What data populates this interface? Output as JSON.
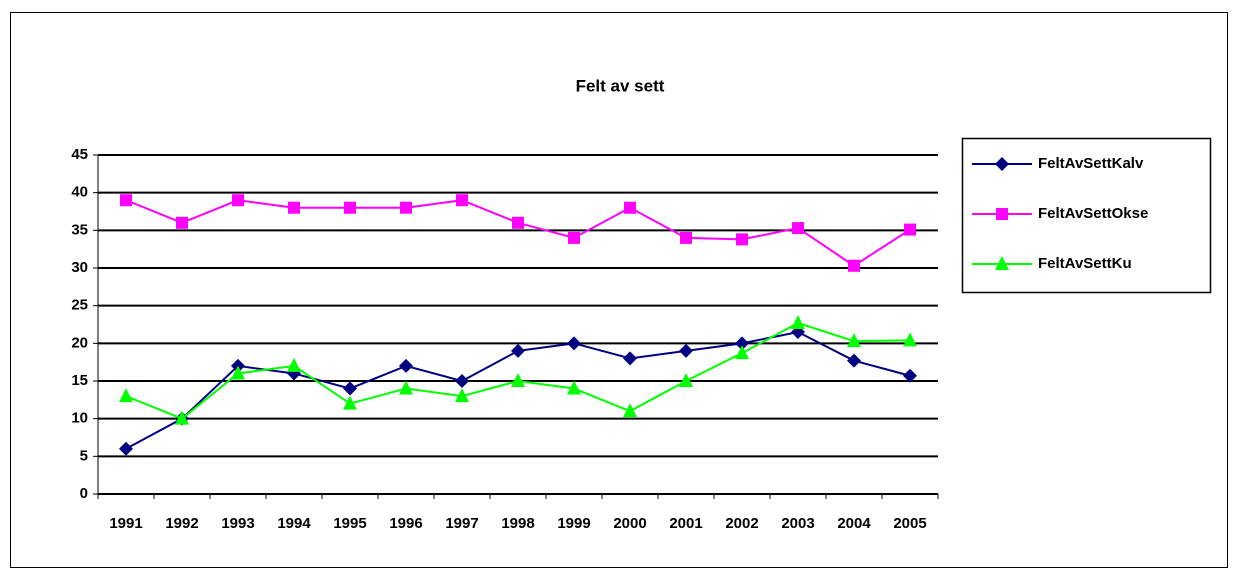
{
  "chart_data": {
    "type": "line",
    "title": "Felt av sett",
    "categories": [
      "1991",
      "1992",
      "1993",
      "1994",
      "1995",
      "1996",
      "1997",
      "1998",
      "1999",
      "2000",
      "2001",
      "2002",
      "2003",
      "2004",
      "2005"
    ],
    "series": [
      {
        "name": "FeltAvSettKalv",
        "color": "#000080",
        "marker": "diamond",
        "values": [
          6,
          10,
          17,
          16,
          14,
          17,
          15,
          19,
          20,
          18,
          19,
          20,
          21.5,
          17.7,
          15.7
        ]
      },
      {
        "name": "FeltAvSettOkse",
        "color": "#ff00ff",
        "marker": "square",
        "values": [
          39,
          36,
          39,
          38,
          38,
          38,
          39,
          36,
          34,
          38,
          34,
          33.8,
          35.3,
          30.3,
          35.1
        ]
      },
      {
        "name": "FeltAvSettKu",
        "color": "#00ff00",
        "marker": "triangle",
        "values": [
          13,
          10,
          16,
          17,
          12,
          14,
          13,
          15,
          14,
          11,
          15,
          18.7,
          22.7,
          20.3,
          20.4
        ]
      }
    ],
    "ylim": [
      0,
      45
    ],
    "yticks": [
      0,
      5,
      10,
      15,
      20,
      25,
      30,
      35,
      40,
      45
    ],
    "grid": true,
    "legend": "right"
  }
}
